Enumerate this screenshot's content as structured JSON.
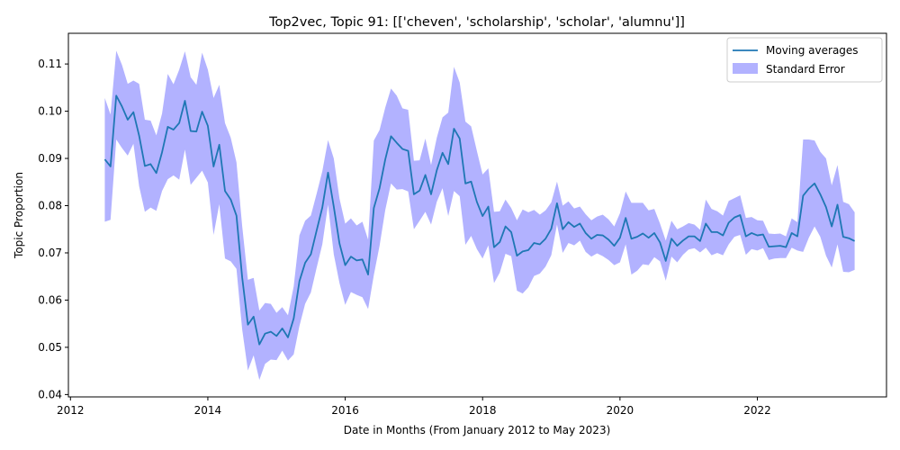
{
  "chart_data": {
    "type": "line",
    "title": "Top2vec, Topic 91: [['cheven', 'scholarship', 'scholar', 'alumnu']]",
    "xlabel": "Date in Months (From January 2012 to May 2023)",
    "ylabel": "Topic Proportion",
    "xlim": [
      2011.97,
      2023.88
    ],
    "ylim": [
      0.0395,
      0.1165
    ],
    "xticks": [
      2012,
      2014,
      2016,
      2018,
      2020,
      2022
    ],
    "xtick_labels": [
      "2012",
      "2014",
      "2016",
      "2018",
      "2020",
      "2022"
    ],
    "yticks": [
      0.04,
      0.05,
      0.06,
      0.07,
      0.08,
      0.09,
      0.1,
      0.11
    ],
    "ytick_labels": [
      "0.04",
      "0.05",
      "0.06",
      "0.07",
      "0.08",
      "0.09",
      "0.10",
      "0.11"
    ],
    "grid": false,
    "legend_position": "top-right",
    "series": [
      {
        "name": "Moving averages",
        "color": "#1f77b4",
        "x_start": 2012.5,
        "x_step": 0.08333,
        "values": [
          0.0898,
          0.0883,
          0.1033,
          0.101,
          0.0982,
          0.0998,
          0.0948,
          0.0884,
          0.0888,
          0.0869,
          0.0913,
          0.0967,
          0.0961,
          0.0975,
          0.1022,
          0.0958,
          0.0957,
          0.0999,
          0.0969,
          0.0883,
          0.0929,
          0.0831,
          0.0813,
          0.0779,
          0.0648,
          0.0548,
          0.0565,
          0.0506,
          0.0529,
          0.0533,
          0.0524,
          0.054,
          0.0521,
          0.0561,
          0.064,
          0.0679,
          0.0697,
          0.0747,
          0.0796,
          0.087,
          0.0798,
          0.072,
          0.0674,
          0.0692,
          0.0684,
          0.0686,
          0.0654,
          0.0795,
          0.0837,
          0.0898,
          0.0947,
          0.0933,
          0.092,
          0.0916,
          0.0824,
          0.0832,
          0.0865,
          0.0824,
          0.0875,
          0.0912,
          0.0888,
          0.0963,
          0.0942,
          0.0847,
          0.0851,
          0.0808,
          0.0778,
          0.0798,
          0.0712,
          0.0723,
          0.0756,
          0.0744,
          0.0694,
          0.0703,
          0.0706,
          0.0721,
          0.0718,
          0.073,
          0.0751,
          0.0805,
          0.075,
          0.0765,
          0.0755,
          0.0762,
          0.0742,
          0.073,
          0.0738,
          0.0737,
          0.0728,
          0.0715,
          0.0732,
          0.0774,
          0.073,
          0.0734,
          0.0741,
          0.0732,
          0.0742,
          0.0722,
          0.0683,
          0.073,
          0.0715,
          0.0726,
          0.0735,
          0.0735,
          0.0725,
          0.0762,
          0.0744,
          0.0744,
          0.0737,
          0.0764,
          0.0775,
          0.078,
          0.0735,
          0.0742,
          0.0737,
          0.0739,
          0.0713,
          0.0714,
          0.0715,
          0.0712,
          0.0742,
          0.0735,
          0.0821,
          0.0836,
          0.0847,
          0.0824,
          0.0797,
          0.0756,
          0.0802,
          0.0734,
          0.0731,
          0.0725
        ]
      },
      {
        "name": "Standard Error",
        "color": "#0000ff",
        "opacity": 0.3,
        "x_start": 2012.5,
        "x_step": 0.08333,
        "upper": [
          0.1028,
          0.0993,
          0.1128,
          0.1098,
          0.1058,
          0.1065,
          0.1058,
          0.0982,
          0.098,
          0.0949,
          0.0995,
          0.1079,
          0.1057,
          0.1088,
          0.1127,
          0.1072,
          0.1056,
          0.1124,
          0.1088,
          0.1028,
          0.1056,
          0.0975,
          0.0944,
          0.0892,
          0.0757,
          0.0643,
          0.0647,
          0.0578,
          0.0594,
          0.0592,
          0.0573,
          0.0585,
          0.0568,
          0.0629,
          0.0737,
          0.0768,
          0.0779,
          0.0825,
          0.0873,
          0.0939,
          0.09,
          0.0815,
          0.0762,
          0.0773,
          0.0758,
          0.0766,
          0.0728,
          0.0938,
          0.096,
          0.1008,
          0.1048,
          0.1033,
          0.1006,
          0.1003,
          0.0895,
          0.0896,
          0.0942,
          0.0886,
          0.0944,
          0.0987,
          0.0997,
          0.1094,
          0.1061,
          0.0978,
          0.0968,
          0.0916,
          0.0866,
          0.0879,
          0.0787,
          0.0788,
          0.0813,
          0.0795,
          0.0769,
          0.0792,
          0.0786,
          0.0791,
          0.0781,
          0.079,
          0.0807,
          0.0851,
          0.08,
          0.0809,
          0.0794,
          0.0798,
          0.0782,
          0.0769,
          0.0777,
          0.0781,
          0.0771,
          0.0756,
          0.0784,
          0.083,
          0.0806,
          0.0806,
          0.0806,
          0.079,
          0.0793,
          0.0762,
          0.0726,
          0.0768,
          0.075,
          0.0756,
          0.0763,
          0.076,
          0.0749,
          0.0813,
          0.0793,
          0.0788,
          0.0779,
          0.081,
          0.0816,
          0.0822,
          0.0774,
          0.0776,
          0.0769,
          0.0768,
          0.0741,
          0.074,
          0.0741,
          0.0735,
          0.0773,
          0.0765,
          0.094,
          0.094,
          0.0938,
          0.0914,
          0.09,
          0.0843,
          0.0886,
          0.0808,
          0.0803,
          0.0786
        ],
        "lower": [
          0.0766,
          0.077,
          0.094,
          0.0922,
          0.0906,
          0.0931,
          0.0841,
          0.0787,
          0.0796,
          0.0789,
          0.0831,
          0.0856,
          0.0864,
          0.0855,
          0.0919,
          0.0844,
          0.0859,
          0.0874,
          0.0849,
          0.0738,
          0.0803,
          0.0688,
          0.0682,
          0.0666,
          0.0538,
          0.0451,
          0.0483,
          0.0431,
          0.0465,
          0.0474,
          0.0473,
          0.0493,
          0.0472,
          0.0485,
          0.0545,
          0.0592,
          0.0616,
          0.0668,
          0.0718,
          0.0802,
          0.0697,
          0.0636,
          0.059,
          0.0617,
          0.0611,
          0.0606,
          0.0581,
          0.0653,
          0.0715,
          0.0791,
          0.0847,
          0.0834,
          0.0835,
          0.083,
          0.075,
          0.0768,
          0.0787,
          0.076,
          0.0808,
          0.0837,
          0.0778,
          0.0831,
          0.082,
          0.0717,
          0.0736,
          0.0708,
          0.0688,
          0.0716,
          0.0636,
          0.0658,
          0.0698,
          0.0693,
          0.062,
          0.0614,
          0.0627,
          0.0651,
          0.0656,
          0.0671,
          0.0695,
          0.076,
          0.07,
          0.0721,
          0.0716,
          0.0726,
          0.0702,
          0.0692,
          0.0699,
          0.0693,
          0.0685,
          0.0674,
          0.068,
          0.0718,
          0.0654,
          0.0662,
          0.0676,
          0.0674,
          0.0691,
          0.0682,
          0.0641,
          0.0692,
          0.068,
          0.0696,
          0.0707,
          0.071,
          0.0701,
          0.0711,
          0.0695,
          0.07,
          0.0695,
          0.0718,
          0.0734,
          0.0738,
          0.0696,
          0.0708,
          0.0705,
          0.071,
          0.0685,
          0.0688,
          0.0689,
          0.0689,
          0.0711,
          0.0705,
          0.0702,
          0.0732,
          0.0756,
          0.0734,
          0.0694,
          0.0669,
          0.0718,
          0.066,
          0.0659,
          0.0664
        ]
      }
    ]
  }
}
